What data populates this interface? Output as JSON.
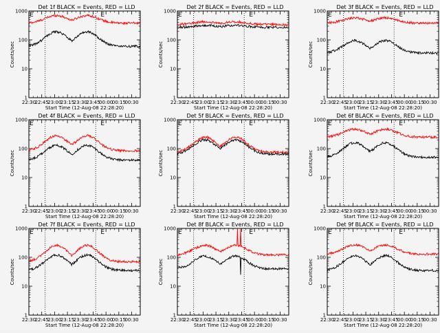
{
  "chart_data": [
    {
      "type": "line",
      "title": "Det 1f BLACK = Events, RED = LLD",
      "xlabel": "Start Time (12-Aug-08 22:28:20)",
      "ylabel": "Counts/sec",
      "xlim": [
        "22:30",
        "00:40"
      ],
      "ylim": [
        1,
        1000
      ],
      "yscale": "log",
      "x_tick_labels": [
        "22:30",
        "22:45",
        "23:00",
        "23:15",
        "23:30",
        "23:45",
        "00:00",
        "00:15",
        "00:30"
      ],
      "y_tick_labels": [
        "1",
        "10",
        "100",
        "1000"
      ],
      "markers": [
        {
          "label": "E",
          "time": "22:30"
        },
        {
          "label": "E",
          "time": "23:53"
        }
      ],
      "vlines": [
        "22:49",
        "23:48"
      ],
      "series": [
        {
          "color": "#ff0000",
          "baseline": 380,
          "peak": 700,
          "peak_times": [
            "23:02",
            "23:38"
          ]
        },
        {
          "color": "#000000",
          "baseline": 60,
          "peak": 190,
          "peak_times": [
            "23:02",
            "23:38"
          ]
        }
      ]
    },
    {
      "type": "line",
      "title": "Det 2f BLACK = Events, RED = LLD",
      "xlabel": "Start Time (12-Aug-08 22:28:20)",
      "ylabel": "Counts/sec",
      "xlim": [
        "22:30",
        "00:40"
      ],
      "ylim": [
        1,
        1000
      ],
      "yscale": "log",
      "x_tick_labels": [
        "22:30",
        "22:45",
        "23:00",
        "23:15",
        "23:30",
        "23:45",
        "00:00",
        "00:15",
        "00:30"
      ],
      "y_tick_labels": [
        "1",
        "10",
        "100",
        "1000"
      ],
      "markers": [
        {
          "label": "E",
          "time": "22:30"
        },
        {
          "label": "E",
          "time": "23:53"
        }
      ],
      "vlines": [
        "22:49",
        "23:48"
      ],
      "series": [
        {
          "color": "#ff0000",
          "baseline": 340,
          "peak": 420,
          "peak_times": [
            "23:02",
            "23:38"
          ]
        },
        {
          "color": "#000000",
          "baseline": 270,
          "peak": 320,
          "peak_times": [
            "23:02",
            "23:38"
          ]
        }
      ]
    },
    {
      "type": "line",
      "title": "Det 3f BLACK = Events, RED = LLD",
      "xlabel": "Start Time (12-Aug-08 22:28:20)",
      "ylabel": "Counts/sec",
      "xlim": [
        "22:30",
        "00:40"
      ],
      "ylim": [
        1,
        1000
      ],
      "yscale": "log",
      "x_tick_labels": [
        "22:30",
        "22:45",
        "23:00",
        "23:15",
        "23:30",
        "23:45",
        "00:00",
        "00:15",
        "00:30"
      ],
      "y_tick_labels": [
        "1",
        "10",
        "100",
        "1000"
      ],
      "markers": [
        {
          "label": "E",
          "time": "22:30"
        },
        {
          "label": "E",
          "time": "23:53"
        }
      ],
      "vlines": [
        "22:49",
        "23:48"
      ],
      "series": [
        {
          "color": "#ff0000",
          "baseline": 380,
          "peak": 580,
          "peak_times": [
            "23:02",
            "23:38"
          ]
        },
        {
          "color": "#000000",
          "baseline": 35,
          "peak": 95,
          "peak_times": [
            "23:02",
            "23:38"
          ]
        }
      ]
    },
    {
      "type": "line",
      "title": "Det 4f BLACK = Events, RED = LLD",
      "xlabel": "Start Time (12-Aug-08 22:28:20)",
      "ylabel": "Counts/sec",
      "xlim": [
        "22:30",
        "00:40"
      ],
      "ylim": [
        1,
        1000
      ],
      "yscale": "log",
      "x_tick_labels": [
        "22:30",
        "22:45",
        "23:00",
        "23:15",
        "23:30",
        "23:45",
        "00:00",
        "00:15",
        "00:30"
      ],
      "y_tick_labels": [
        "1",
        "10",
        "100",
        "1000"
      ],
      "markers": [
        {
          "label": "E",
          "time": "22:30"
        },
        {
          "label": "E",
          "time": "23:53"
        }
      ],
      "vlines": [
        "22:49",
        "23:48"
      ],
      "series": [
        {
          "color": "#ff0000",
          "baseline": 85,
          "peak": 280,
          "peak_times": [
            "23:02",
            "23:38"
          ]
        },
        {
          "color": "#000000",
          "baseline": 40,
          "peak": 130,
          "peak_times": [
            "23:02",
            "23:38"
          ]
        }
      ]
    },
    {
      "type": "line",
      "title": "Det 5f BLACK = Events, RED = LLD",
      "xlabel": "Start Time (12-Aug-08 22:28:20)",
      "ylabel": "Counts/sec",
      "xlim": [
        "22:30",
        "00:40"
      ],
      "ylim": [
        1,
        1000
      ],
      "yscale": "log",
      "x_tick_labels": [
        "22:30",
        "22:45",
        "23:00",
        "23:15",
        "23:30",
        "23:45",
        "00:00",
        "00:15",
        "00:30"
      ],
      "y_tick_labels": [
        "1",
        "10",
        "100",
        "1000"
      ],
      "markers": [
        {
          "label": "E",
          "time": "22:30"
        },
        {
          "label": "E",
          "time": "23:53"
        }
      ],
      "vlines": [
        "22:49",
        "23:48"
      ],
      "series": [
        {
          "color": "#ff0000",
          "baseline": 75,
          "peak": 250,
          "peak_times": [
            "23:02",
            "23:38"
          ]
        },
        {
          "color": "#000000",
          "baseline": 65,
          "peak": 200,
          "peak_times": [
            "23:02",
            "23:38"
          ]
        }
      ]
    },
    {
      "type": "line",
      "title": "Det 6f BLACK = Events, RED = LLD",
      "xlabel": "Start Time (12-Aug-08 22:28:20)",
      "ylabel": "Counts/sec",
      "xlim": [
        "22:30",
        "00:40"
      ],
      "ylim": [
        1,
        1000
      ],
      "yscale": "log",
      "x_tick_labels": [
        "22:30",
        "22:45",
        "23:00",
        "23:15",
        "23:30",
        "23:45",
        "00:00",
        "00:15",
        "00:30"
      ],
      "y_tick_labels": [
        "1",
        "10",
        "100",
        "1000"
      ],
      "markers": [
        {
          "label": "E",
          "time": "22:30"
        },
        {
          "label": "E",
          "time": "23:53"
        }
      ],
      "vlines": [
        "22:49",
        "23:48"
      ],
      "series": [
        {
          "color": "#ff0000",
          "baseline": 250,
          "peak": 470,
          "peak_times": [
            "23:02",
            "23:38"
          ]
        },
        {
          "color": "#000000",
          "baseline": 50,
          "peak": 160,
          "peak_times": [
            "23:02",
            "23:38"
          ]
        }
      ]
    },
    {
      "type": "line",
      "title": "Det 7f BLACK = Events, RED = LLD",
      "xlabel": "Start Time (12-Aug-08 22:28:20)",
      "ylabel": "Counts/sec",
      "xlim": [
        "22:30",
        "00:40"
      ],
      "ylim": [
        1,
        1000
      ],
      "yscale": "log",
      "x_tick_labels": [
        "22:30",
        "22:45",
        "23:00",
        "23:15",
        "23:30",
        "23:45",
        "00:00",
        "00:15",
        "00:30"
      ],
      "y_tick_labels": [
        "1",
        "10",
        "100",
        "1000"
      ],
      "markers": [
        {
          "label": "E",
          "time": "22:30"
        },
        {
          "label": "E",
          "time": "23:53"
        }
      ],
      "vlines": [
        "22:49",
        "23:48"
      ],
      "series": [
        {
          "color": "#ff0000",
          "baseline": 70,
          "peak": 260,
          "peak_times": [
            "23:02",
            "23:38"
          ]
        },
        {
          "color": "#000000",
          "baseline": 35,
          "peak": 120,
          "peak_times": [
            "23:02",
            "23:38"
          ]
        }
      ]
    },
    {
      "type": "line",
      "title": "Det 8f BLACK = Events, RED = LLD",
      "xlabel": "Start Time (12-Aug-08 22:28:20)",
      "ylabel": "Counts/sec",
      "xlim": [
        "22:30",
        "00:40"
      ],
      "ylim": [
        1,
        1000
      ],
      "yscale": "log",
      "x_tick_labels": [
        "22:30",
        "22:45",
        "23:00",
        "23:15",
        "23:30",
        "23:45",
        "00:00",
        "00:15",
        "00:30"
      ],
      "y_tick_labels": [
        "1",
        "10",
        "100",
        "1000"
      ],
      "markers": [
        {
          "label": "E",
          "time": "22:30"
        },
        {
          "label": "E",
          "time": "23:53"
        }
      ],
      "vlines": [
        "22:49",
        "23:48"
      ],
      "series": [
        {
          "color": "#ff0000",
          "baseline": 120,
          "peak": 260,
          "peak_times": [
            "23:02",
            "23:38"
          ],
          "spikes": [
            {
              "time": "23:40",
              "value": 1000
            },
            {
              "time": "23:44",
              "value": 1000
            }
          ]
        },
        {
          "color": "#000000",
          "baseline": 40,
          "peak": 110,
          "peak_times": [
            "23:02",
            "23:38"
          ],
          "spikes": [
            {
              "time": "23:44",
              "value": 25
            }
          ]
        }
      ]
    },
    {
      "type": "line",
      "title": "Det 9f BLACK = Events, RED = LLD",
      "xlabel": "Start Time (12-Aug-08 22:28:20)",
      "ylabel": "Counts/sec",
      "xlim": [
        "22:30",
        "00:40"
      ],
      "ylim": [
        1,
        1000
      ],
      "yscale": "log",
      "x_tick_labels": [
        "22:30",
        "22:45",
        "23:00",
        "23:15",
        "23:30",
        "23:45",
        "00:00",
        "00:15",
        "00:30"
      ],
      "y_tick_labels": [
        "1",
        "10",
        "100",
        "1000"
      ],
      "markers": [
        {
          "label": "E",
          "time": "22:30"
        },
        {
          "label": "E",
          "time": "23:53"
        }
      ],
      "vlines": [
        "22:49",
        "23:48"
      ],
      "series": [
        {
          "color": "#ff0000",
          "baseline": 130,
          "peak": 270,
          "peak_times": [
            "23:02",
            "23:38"
          ]
        },
        {
          "color": "#000000",
          "baseline": 35,
          "peak": 115,
          "peak_times": [
            "23:02",
            "23:38"
          ]
        }
      ]
    }
  ]
}
